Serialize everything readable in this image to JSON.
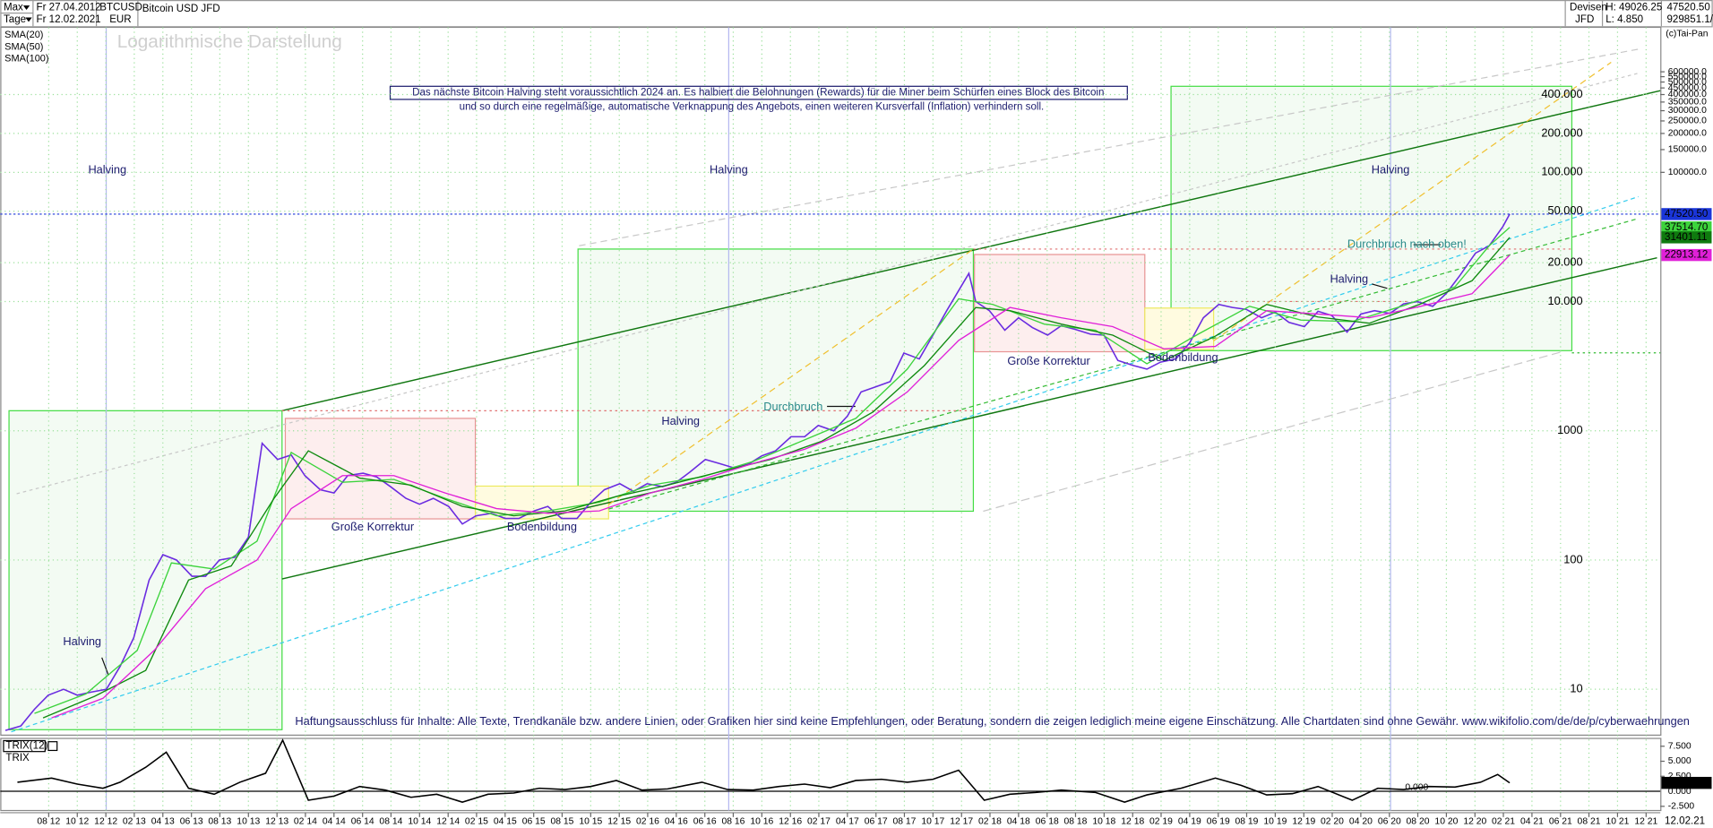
{
  "header": {
    "range": "Max",
    "period": "Tage",
    "from": "Fr 27.04.2012",
    "to": "Fr 12.02.2021",
    "symbol": "BTCUSD",
    "currency": "EUR",
    "market": "Devisen",
    "broker": "JFD",
    "high": "H: 49026.25",
    "low": "L: 4.850",
    "last": "47520.50",
    "extra": "929851.1/",
    "copyright": "(c)Tai-Pan",
    "date": "12.02.21"
  },
  "chart_data": [
    {
      "type": "line",
      "subtitle": "Logarithmische Darstellung",
      "log_scale": true,
      "grid": true,
      "xlim": [
        2012.3,
        2022.0
      ],
      "ylim": [
        4.5,
        1300000
      ],
      "y2lim": [
        4.5,
        1300000
      ],
      "xticks": [
        {
          "value": 2012.583,
          "label": "08 12"
        },
        {
          "value": 2012.75,
          "label": "10 12"
        },
        {
          "value": 2012.917,
          "label": "12 12"
        },
        {
          "value": 2013.083,
          "label": "02 13"
        },
        {
          "value": 2013.25,
          "label": "04 13"
        },
        {
          "value": 2013.417,
          "label": "06 13"
        },
        {
          "value": 2013.583,
          "label": "08 13"
        },
        {
          "value": 2013.75,
          "label": "10 13"
        },
        {
          "value": 2013.917,
          "label": "12 13"
        },
        {
          "value": 2014.083,
          "label": "02 14"
        },
        {
          "value": 2014.25,
          "label": "04 14"
        },
        {
          "value": 2014.417,
          "label": "06 14"
        },
        {
          "value": 2014.583,
          "label": "08 14"
        },
        {
          "value": 2014.75,
          "label": "10 14"
        },
        {
          "value": 2014.917,
          "label": "12 14"
        },
        {
          "value": 2015.083,
          "label": "02 15"
        },
        {
          "value": 2015.25,
          "label": "04 15"
        },
        {
          "value": 2015.417,
          "label": "06 15"
        },
        {
          "value": 2015.583,
          "label": "08 15"
        },
        {
          "value": 2015.75,
          "label": "10 15"
        },
        {
          "value": 2015.917,
          "label": "12 15"
        },
        {
          "value": 2016.083,
          "label": "02 16"
        },
        {
          "value": 2016.25,
          "label": "04 16"
        },
        {
          "value": 2016.417,
          "label": "06 16"
        },
        {
          "value": 2016.583,
          "label": "08 16"
        },
        {
          "value": 2016.75,
          "label": "10 16"
        },
        {
          "value": 2016.917,
          "label": "12 16"
        },
        {
          "value": 2017.083,
          "label": "02 17"
        },
        {
          "value": 2017.25,
          "label": "04 17"
        },
        {
          "value": 2017.417,
          "label": "06 17"
        },
        {
          "value": 2017.583,
          "label": "08 17"
        },
        {
          "value": 2017.75,
          "label": "10 17"
        },
        {
          "value": 2017.917,
          "label": "12 17"
        },
        {
          "value": 2018.083,
          "label": "02 18"
        },
        {
          "value": 2018.25,
          "label": "04 18"
        },
        {
          "value": 2018.417,
          "label": "06 18"
        },
        {
          "value": 2018.583,
          "label": "08 18"
        },
        {
          "value": 2018.75,
          "label": "10 18"
        },
        {
          "value": 2018.917,
          "label": "12 18"
        },
        {
          "value": 2019.083,
          "label": "02 19"
        },
        {
          "value": 2019.25,
          "label": "04 19"
        },
        {
          "value": 2019.417,
          "label": "06 19"
        },
        {
          "value": 2019.583,
          "label": "08 19"
        },
        {
          "value": 2019.75,
          "label": "10 19"
        },
        {
          "value": 2019.917,
          "label": "12 19"
        },
        {
          "value": 2020.083,
          "label": "02 20"
        },
        {
          "value": 2020.25,
          "label": "04 20"
        },
        {
          "value": 2020.417,
          "label": "06 20"
        },
        {
          "value": 2020.583,
          "label": "08 20"
        },
        {
          "value": 2020.75,
          "label": "10 20"
        },
        {
          "value": 2020.917,
          "label": "12 20"
        },
        {
          "value": 2021.083,
          "label": "02 21"
        },
        {
          "value": 2021.25,
          "label": "04 21"
        },
        {
          "value": 2021.417,
          "label": "06 21"
        },
        {
          "value": 2021.583,
          "label": "08 21"
        },
        {
          "value": 2021.75,
          "label": "10 21"
        },
        {
          "value": 2021.917,
          "label": "12 21"
        }
      ],
      "yticks": [
        {
          "value": 400000,
          "label": "400.000"
        },
        {
          "value": 200000,
          "label": "200.000"
        },
        {
          "value": 100000,
          "label": "100.000"
        },
        {
          "value": 50000,
          "label": "50.000"
        },
        {
          "value": 20000,
          "label": "20.000"
        },
        {
          "value": 10000,
          "label": "10.000"
        },
        1000,
        100,
        10
      ],
      "y2ticks": [
        {
          "value": 600000,
          "label": "600000.0"
        },
        {
          "value": 550000,
          "label": "550000.0"
        },
        {
          "value": 500000,
          "label": "500000.0"
        },
        {
          "value": 450000,
          "label": "450000.0"
        },
        {
          "value": 400000,
          "label": "400000.0"
        },
        {
          "value": 350000,
          "label": "350000.0"
        },
        {
          "value": 300000,
          "label": "300000.0"
        },
        {
          "value": 250000,
          "label": "250000.0"
        },
        {
          "value": 200000,
          "label": "200000.0"
        },
        {
          "value": 150000,
          "label": "150000.0"
        },
        {
          "value": 100000,
          "label": "100000.0"
        }
      ],
      "series": [
        {
          "name": "Bitcoin USD JFD",
          "color": "#6a2be0",
          "x": [
            2012.33,
            2012.42,
            2012.5,
            2012.58,
            2012.67,
            2012.75,
            2012.83,
            2012.92,
            2013.0,
            2013.08,
            2013.17,
            2013.25,
            2013.33,
            2013.42,
            2013.5,
            2013.58,
            2013.67,
            2013.75,
            2013.83,
            2013.92,
            2014.0,
            2014.08,
            2014.17,
            2014.25,
            2014.33,
            2014.42,
            2014.5,
            2014.58,
            2014.67,
            2014.75,
            2014.83,
            2014.92,
            2015.0,
            2015.08,
            2015.17,
            2015.25,
            2015.33,
            2015.42,
            2015.5,
            2015.58,
            2015.67,
            2015.75,
            2015.83,
            2015.92,
            2016.0,
            2016.08,
            2016.17,
            2016.25,
            2016.33,
            2016.42,
            2016.5,
            2016.58,
            2016.67,
            2016.75,
            2016.83,
            2016.92,
            2017.0,
            2017.08,
            2017.17,
            2017.25,
            2017.33,
            2017.42,
            2017.5,
            2017.58,
            2017.67,
            2017.75,
            2017.83,
            2017.96,
            2018.0,
            2018.08,
            2018.17,
            2018.25,
            2018.33,
            2018.42,
            2018.5,
            2018.58,
            2018.67,
            2018.75,
            2018.83,
            2018.92,
            2019.0,
            2019.08,
            2019.17,
            2019.25,
            2019.33,
            2019.42,
            2019.5,
            2019.58,
            2019.67,
            2019.75,
            2019.83,
            2019.92,
            2020.0,
            2020.08,
            2020.17,
            2020.25,
            2020.33,
            2020.42,
            2020.5,
            2020.58,
            2020.67,
            2020.75,
            2020.83,
            2020.92,
            2021.0,
            2021.08,
            2021.12
          ],
          "values": [
            4.8,
            5.2,
            7,
            9,
            10,
            9,
            9.5,
            10,
            15,
            25,
            70,
            110,
            100,
            75,
            75,
            100,
            105,
            150,
            800,
            600,
            650,
            450,
            350,
            330,
            450,
            470,
            440,
            370,
            300,
            270,
            300,
            260,
            190,
            220,
            230,
            210,
            210,
            240,
            260,
            210,
            210,
            280,
            350,
            390,
            340,
            390,
            370,
            400,
            480,
            600,
            560,
            520,
            550,
            640,
            700,
            900,
            900,
            1100,
            1000,
            1300,
            2000,
            2200,
            2400,
            4000,
            3600,
            5500,
            8500,
            16500,
            10000,
            8500,
            6000,
            7500,
            6300,
            5500,
            6500,
            6100,
            5600,
            5500,
            3500,
            3200,
            3000,
            3400,
            3600,
            4800,
            7500,
            9500,
            9000,
            8700,
            7500,
            8300,
            6900,
            6400,
            8400,
            7800,
            5800,
            8000,
            8500,
            8100,
            9600,
            10000,
            9200,
            11600,
            16000,
            23700,
            27000,
            38000,
            47520.5
          ]
        },
        {
          "name": "SMA(20)",
          "color": "#3cd33c",
          "x": [
            2012.5,
            2012.8,
            2013.1,
            2013.3,
            2013.55,
            2013.8,
            2014.0,
            2014.3,
            2014.6,
            2014.9,
            2015.2,
            2015.5,
            2015.8,
            2016.1,
            2016.4,
            2016.7,
            2017.0,
            2017.3,
            2017.6,
            2017.9,
            2018.1,
            2018.4,
            2018.7,
            2019.0,
            2019.3,
            2019.6,
            2019.9,
            2020.2,
            2020.5,
            2020.8,
            2021.0,
            2021.12
          ],
          "values": [
            6.5,
            9.2,
            20,
            95,
            85,
            140,
            680,
            400,
            420,
            300,
            220,
            240,
            280,
            380,
            440,
            580,
            850,
            1250,
            3000,
            10500,
            9500,
            6700,
            6000,
            3300,
            5600,
            9200,
            7200,
            7000,
            9300,
            13000,
            27000,
            37514.7
          ]
        },
        {
          "name": "SMA(50)",
          "color": "#0f8a0f",
          "x": [
            2012.55,
            2012.85,
            2013.15,
            2013.4,
            2013.65,
            2013.9,
            2014.1,
            2014.4,
            2014.7,
            2015.0,
            2015.3,
            2015.6,
            2015.9,
            2016.2,
            2016.5,
            2016.8,
            2017.1,
            2017.4,
            2017.7,
            2018.0,
            2018.2,
            2018.5,
            2018.8,
            2019.1,
            2019.4,
            2019.7,
            2020.0,
            2020.3,
            2020.6,
            2020.9,
            2021.12
          ],
          "values": [
            6,
            8.8,
            14,
            70,
            90,
            300,
            700,
            430,
            380,
            260,
            220,
            240,
            310,
            380,
            480,
            600,
            830,
            1400,
            3200,
            9000,
            8500,
            6700,
            5500,
            3500,
            5400,
            9500,
            7600,
            6800,
            9600,
            14500,
            31401.11
          ]
        },
        {
          "name": "SMA(100)",
          "color": "#e020d8",
          "x": [
            2012.6,
            2012.9,
            2013.2,
            2013.5,
            2013.8,
            2014.0,
            2014.3,
            2014.6,
            2014.9,
            2015.2,
            2015.5,
            2015.8,
            2016.1,
            2016.4,
            2016.7,
            2017.0,
            2017.3,
            2017.6,
            2017.9,
            2018.2,
            2018.5,
            2018.8,
            2019.1,
            2019.4,
            2019.7,
            2020.0,
            2020.3,
            2020.6,
            2020.9,
            2021.12
          ],
          "values": [
            6,
            8.5,
            20,
            60,
            100,
            250,
            450,
            450,
            330,
            250,
            230,
            240,
            330,
            420,
            560,
            720,
            1050,
            2000,
            5000,
            9000,
            7500,
            6400,
            4300,
            4500,
            8500,
            8000,
            7500,
            9200,
            11500,
            22913.12
          ]
        }
      ],
      "last_values": [
        {
          "value": 47520.5,
          "label": "47520.50",
          "color": "#1a35d8"
        },
        {
          "value": 37514.7,
          "label": "37514.70",
          "color": "#3cd33c"
        },
        {
          "value": 31401.11,
          "label": "31401.11",
          "color": "#0f7a0f"
        },
        {
          "value": 22913.12,
          "label": "22913.12",
          "color": "#e020d8"
        }
      ],
      "annotations": [
        "Das nächste Bitcoin Halving steht voraussichtlich 2024 an. Es halbiert die Belohnungen (Rewards) für die Miner beim Schürfen eines Block des Bitcoin",
        "und so durch eine regelmäßige, automatische Verknappung des Angebots, einen weiteren Kursverfall (Inflation) verhindern soll.",
        "Halving",
        "Halving",
        "Halving",
        "Halving",
        "Halving",
        "Halving",
        "Große Korrektur",
        "Große Korrektur",
        "Bodenbildung",
        "Bodenbildung",
        "Durchbruch",
        "Durchbruch nach oben!",
        "Haftungsausschluss für Inhalte: Alle Texte, Trendkanäle bzw. andere Linien, oder Grafiken hier sind keine Empfehlungen, oder Beratung, sondern die zeigen lediglich meine eigene Einschätzung. Alle Chartdaten sind ohne Gewähr.  www.wikifolio.com/de/de/p/cyberwaehrungen"
      ]
    },
    {
      "type": "line",
      "title": "TRIX",
      "xlim": [
        2012.3,
        2022.0
      ],
      "ylim": [
        -3.2,
        8.8
      ],
      "yticks": [
        {
          "value": 7.5,
          "label": "7.500"
        },
        {
          "value": 5,
          "label": "5.000"
        },
        {
          "value": 2.5,
          "label": "2.500"
        },
        {
          "value": 0,
          "label": "0.000"
        },
        {
          "value": -2.5,
          "label": "-2.500"
        }
      ],
      "series": [
        {
          "name": "TRIX(12)",
          "color": "#000000",
          "x": [
            2012.4,
            2012.6,
            2012.75,
            2012.9,
            2013.0,
            2013.15,
            2013.27,
            2013.4,
            2013.55,
            2013.7,
            2013.85,
            2013.95,
            2014.1,
            2014.25,
            2014.4,
            2014.55,
            2014.7,
            2014.85,
            2015.0,
            2015.15,
            2015.3,
            2015.45,
            2015.6,
            2015.75,
            2015.9,
            2016.05,
            2016.2,
            2016.4,
            2016.55,
            2016.7,
            2016.85,
            2017.0,
            2017.15,
            2017.3,
            2017.45,
            2017.6,
            2017.75,
            2017.9,
            2018.05,
            2018.2,
            2018.35,
            2018.5,
            2018.7,
            2018.87,
            2019.0,
            2019.2,
            2019.4,
            2019.55,
            2019.7,
            2019.85,
            2020.0,
            2020.2,
            2020.35,
            2020.5,
            2020.65,
            2020.8,
            2020.95,
            2021.05,
            2021.12
          ],
          "values": [
            1.5,
            2.2,
            1.2,
            0.5,
            1.5,
            4,
            6.5,
            0.5,
            -0.5,
            1.5,
            3,
            8.5,
            -1.5,
            -0.8,
            0.8,
            0.2,
            -1,
            -0.5,
            -1.8,
            -0.5,
            -0.3,
            0.5,
            0.3,
            0.8,
            1.8,
            0.2,
            0.4,
            1.5,
            0.3,
            0.2,
            0.8,
            1.2,
            0.6,
            1.8,
            2,
            1.5,
            2,
            3.5,
            -1.5,
            -0.5,
            -0.2,
            0.2,
            -0.2,
            -1.8,
            -0.6,
            0.5,
            2.2,
            1,
            -0.6,
            -0.4,
            0.8,
            -1.5,
            0.5,
            0.3,
            0.8,
            0.7,
            1.5,
            2.8,
            1.4
          ]
        }
      ],
      "last_values": [
        {
          "value": 1.4,
          "label": "1.400",
          "color": "#000000"
        }
      ],
      "annotations": [
        "0.000"
      ]
    }
  ]
}
